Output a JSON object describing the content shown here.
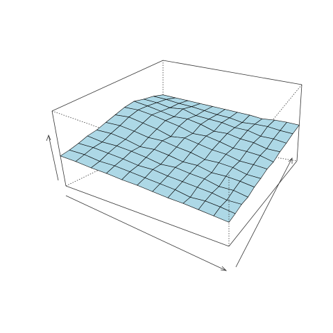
{
  "chart_data": {
    "type": "surface",
    "color": "#add8e6",
    "edge_color": "#000000",
    "zlim": [
      0,
      100
    ],
    "box": true,
    "z": [
      [
        33,
        34,
        36,
        35,
        38,
        39,
        41,
        40,
        43,
        44,
        46,
        47
      ],
      [
        34,
        36,
        35,
        38,
        40,
        39,
        42,
        44,
        43,
        46,
        47,
        48
      ],
      [
        35,
        37,
        38,
        37,
        41,
        43,
        42,
        45,
        47,
        46,
        49,
        48
      ],
      [
        36,
        35,
        39,
        41,
        40,
        44,
        46,
        45,
        48,
        50,
        49,
        47
      ],
      [
        36,
        38,
        40,
        42,
        44,
        43,
        47,
        49,
        51,
        50,
        48,
        49
      ],
      [
        37,
        39,
        41,
        44,
        43,
        47,
        50,
        52,
        50,
        53,
        51,
        50
      ],
      [
        38,
        40,
        43,
        42,
        46,
        49,
        53,
        51,
        55,
        54,
        52,
        51
      ],
      [
        38,
        41,
        42,
        45,
        48,
        52,
        50,
        56,
        58,
        55,
        54,
        52
      ],
      [
        39,
        42,
        44,
        47,
        46,
        51,
        55,
        59,
        57,
        60,
        56,
        53
      ],
      [
        39,
        41,
        45,
        48,
        50,
        54,
        58,
        62,
        60,
        58,
        57,
        54
      ],
      [
        40,
        43,
        46,
        47,
        52,
        56,
        61,
        64,
        63,
        61,
        59,
        55
      ],
      [
        40,
        42,
        45,
        49,
        51,
        55,
        59,
        63,
        65,
        62,
        60,
        56
      ]
    ]
  }
}
